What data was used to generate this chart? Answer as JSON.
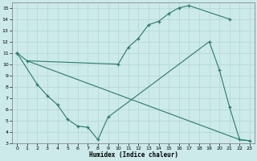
{
  "xlabel": "Humidex (Indice chaleur)",
  "bg_color": "#cceaea",
  "line_color": "#2a7a6a",
  "grid_color": "#b8d8d8",
  "xlim": [
    -0.5,
    23.5
  ],
  "ylim": [
    3,
    15.5
  ],
  "xticks": [
    0,
    1,
    2,
    3,
    4,
    5,
    6,
    7,
    8,
    9,
    10,
    11,
    12,
    13,
    14,
    15,
    16,
    17,
    18,
    19,
    20,
    21,
    22,
    23
  ],
  "yticks": [
    3,
    4,
    5,
    6,
    7,
    8,
    9,
    10,
    11,
    12,
    13,
    14,
    15
  ],
  "line1": {
    "x": [
      0,
      1,
      10,
      11,
      12,
      13,
      14,
      15,
      16,
      17,
      21
    ],
    "y": [
      11,
      10.3,
      10.0,
      11.5,
      12.3,
      13.5,
      13.8,
      14.5,
      15.0,
      15.2,
      14.0
    ]
  },
  "line2": {
    "x": [
      0,
      2,
      3,
      4,
      5,
      6,
      7,
      8,
      9,
      19,
      20,
      21,
      22,
      23
    ],
    "y": [
      11,
      8.2,
      7.2,
      6.4,
      5.1,
      4.5,
      4.4,
      3.3,
      5.3,
      12.0,
      9.5,
      6.2,
      3.3,
      3.2
    ]
  },
  "line3": {
    "x": [
      1,
      22,
      23
    ],
    "y": [
      10.3,
      3.3,
      3.2
    ]
  }
}
